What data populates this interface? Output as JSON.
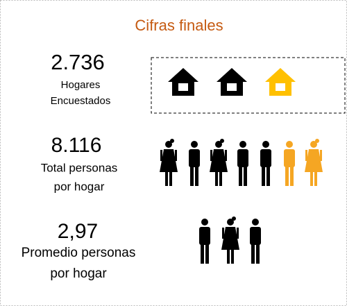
{
  "title": "Cifras finales",
  "items": [
    {
      "value": "2.736",
      "label_lines": [
        "Hogares",
        "Encuestados"
      ]
    },
    {
      "value": "8.116",
      "label_lines": [
        "Total personas",
        "por hogar"
      ]
    },
    {
      "value": "2,97",
      "label_lines": [
        "Promedio personas",
        "por hogar"
      ]
    }
  ]
}
